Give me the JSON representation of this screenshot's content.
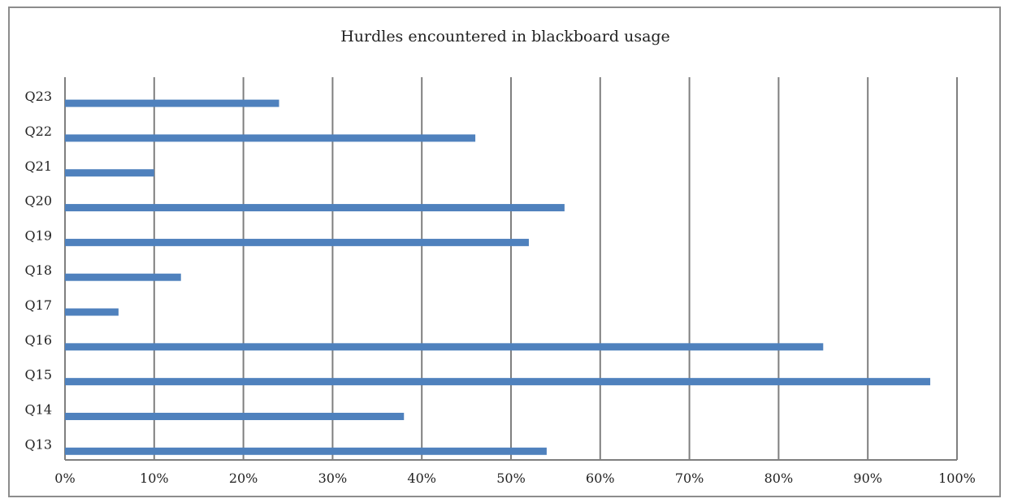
{
  "chart_data": {
    "type": "bar",
    "orientation": "horizontal",
    "title": "Hurdles encountered in blackboard usage",
    "xlabel": "",
    "ylabel": "",
    "categories": [
      "Q23",
      "Q22",
      "Q21",
      "Q20",
      "Q19",
      "Q18",
      "Q17",
      "Q16",
      "Q15",
      "Q14",
      "Q13"
    ],
    "values": [
      24,
      46,
      10,
      56,
      52,
      13,
      6,
      85,
      97,
      38,
      54
    ],
    "xlim": [
      0,
      100
    ],
    "x_ticks": [
      "0%",
      "10%",
      "20%",
      "30%",
      "40%",
      "50%",
      "60%",
      "70%",
      "80%",
      "90%",
      "100%"
    ],
    "value_unit": "%",
    "grid": "vertical",
    "legend": "none",
    "bar_color": "#4f81bd",
    "grid_color": "#7f7f7f"
  }
}
